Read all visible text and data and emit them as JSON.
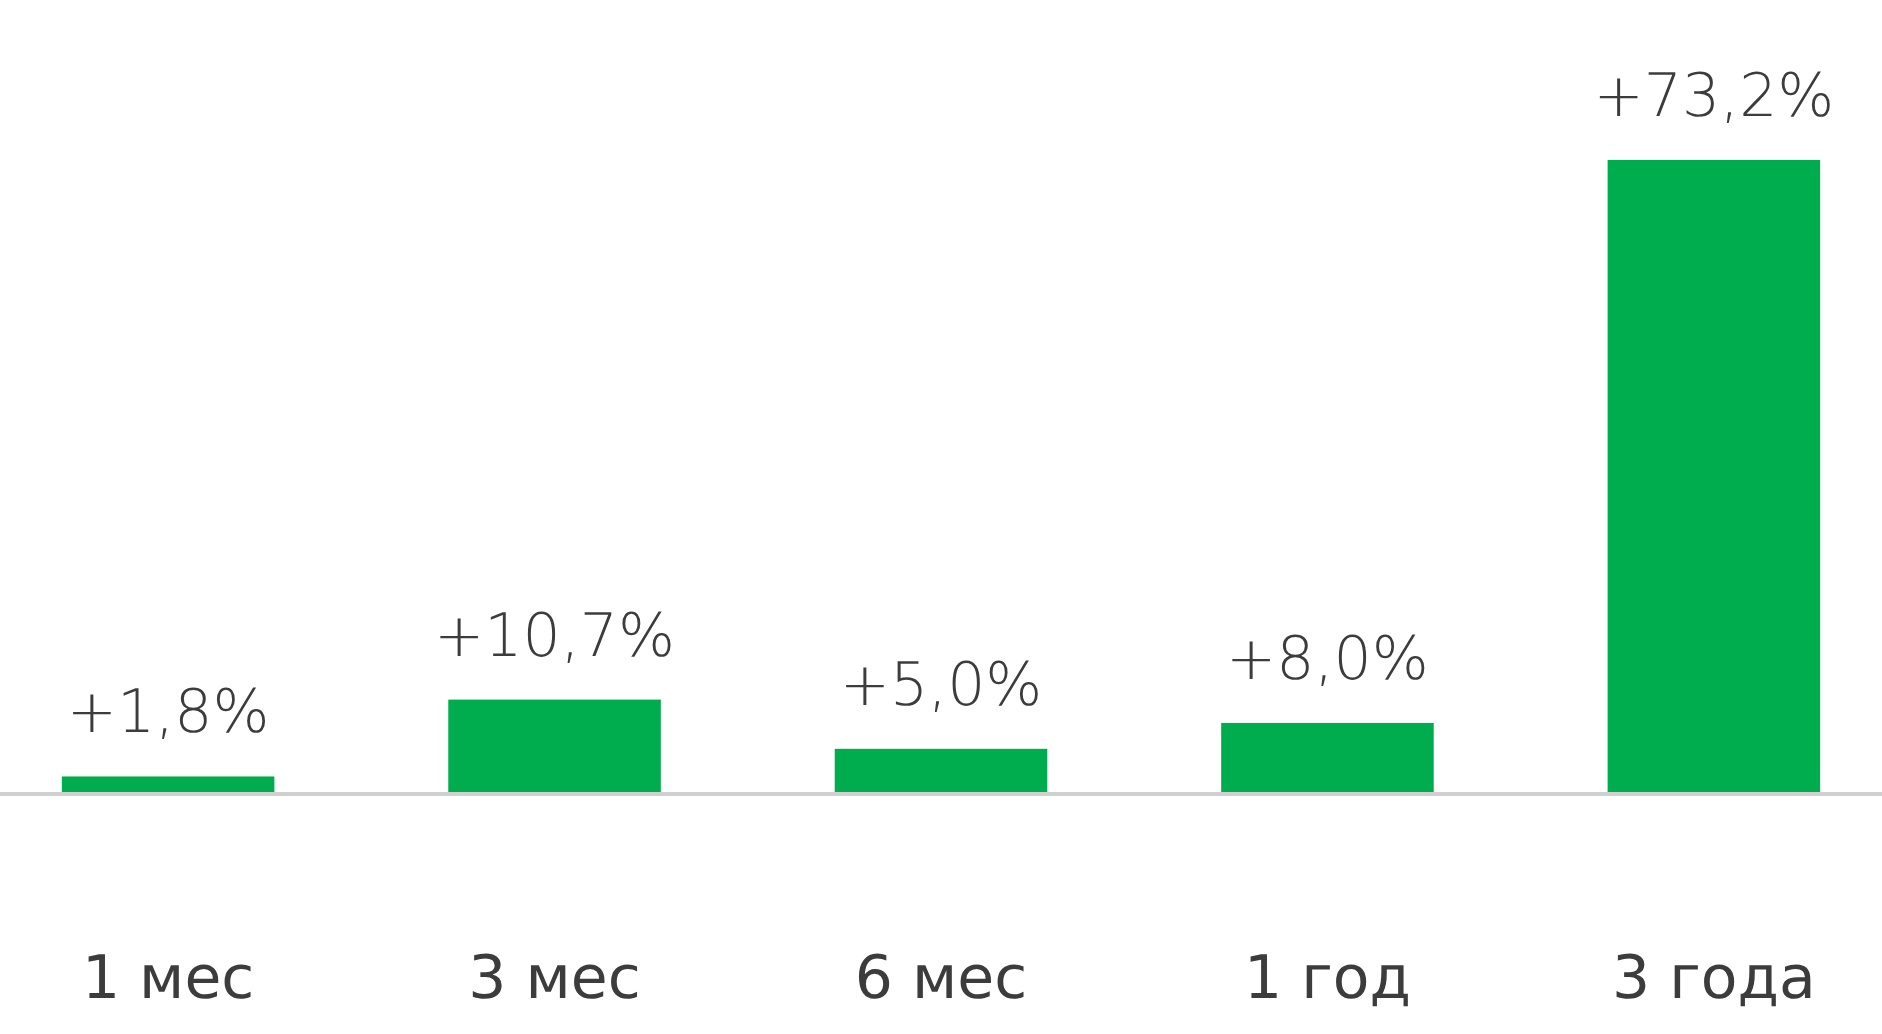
{
  "chart_data": {
    "type": "bar",
    "categories": [
      "1 мес",
      "3 мес",
      "6 мес",
      "1 год",
      "3 года"
    ],
    "values": [
      1.8,
      10.7,
      5.0,
      8.0,
      73.2
    ],
    "value_labels": [
      "+1,8%",
      "+10,7%",
      "+5,0%",
      "+8,0%",
      "+73,2%"
    ],
    "color": "#00ad4e"
  }
}
